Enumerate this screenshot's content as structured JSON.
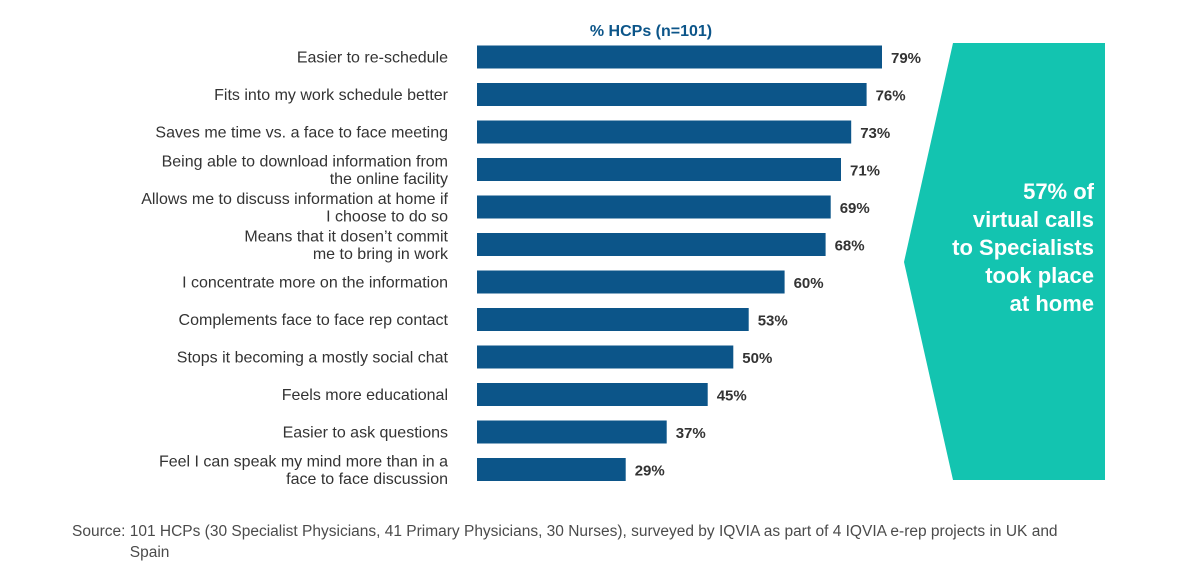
{
  "chart_data": {
    "type": "bar",
    "orientation": "horizontal",
    "series_title": "% HCPs (n=101)",
    "categories": [
      [
        "Easier to re-schedule"
      ],
      [
        "Fits into my work schedule better"
      ],
      [
        "Saves me time vs. a face to face meeting"
      ],
      [
        "Being able to download information from",
        "the online facility"
      ],
      [
        "Allows me to discuss information at home if",
        "I choose to do so"
      ],
      [
        "Means that it dosen’t commit",
        "me to bring in work"
      ],
      [
        "I concentrate more on the information"
      ],
      [
        "Complements face to face rep contact"
      ],
      [
        "Stops it becoming a mostly social chat"
      ],
      [
        "Feels more educational"
      ],
      [
        "Easier to ask questions"
      ],
      [
        "Feel I can speak my mind more than in a",
        "face to face discussion"
      ]
    ],
    "values": [
      79,
      76,
      73,
      71,
      69,
      68,
      60,
      53,
      50,
      45,
      37,
      29
    ],
    "value_labels": [
      "79%",
      "76%",
      "73%",
      "71%",
      "69%",
      "68%",
      "60%",
      "53%",
      "50%",
      "45%",
      "37%",
      "29%"
    ],
    "xlim": [
      0,
      79
    ],
    "grid": false,
    "colors": {
      "bar": "#0c5589",
      "callout": "#13c4b0",
      "title": "#0c5589",
      "text": "#333333"
    }
  },
  "callout": {
    "lines": [
      "57% of",
      "virtual calls",
      "to Specialists",
      "took place",
      "at home"
    ]
  },
  "source": {
    "label": "Source:",
    "text": "101 HCPs (30 Specialist Physicians, 41 Primary Physicians, 30 Nurses), surveyed by IQVIA as part of  4 IQVIA e-rep projects in UK and Spain"
  }
}
